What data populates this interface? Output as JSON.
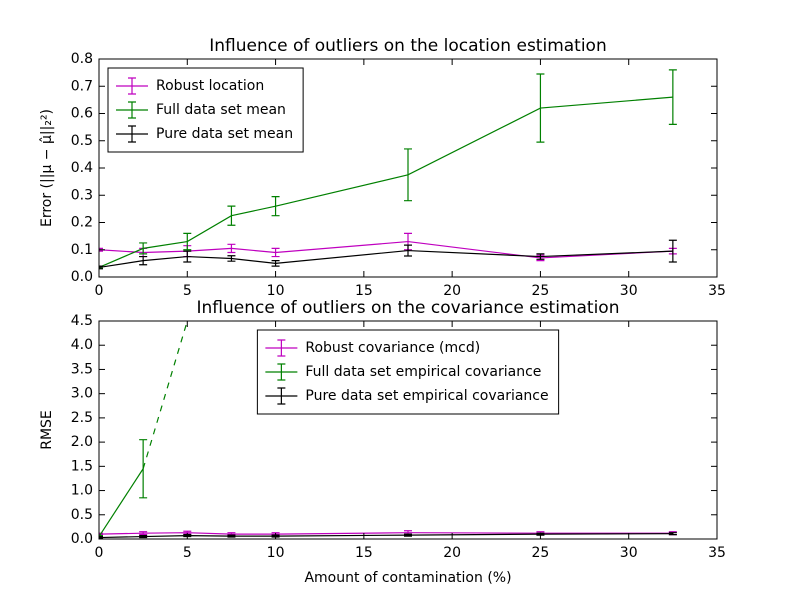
{
  "chart_data": [
    {
      "type": "line",
      "title": "Influence of outliers on the location estimation",
      "ylabel": "Error (||μ − μ̂||₂²)",
      "x": [
        0,
        2.5,
        5,
        7.5,
        10,
        17.5,
        25,
        32.5
      ],
      "xlim": [
        0,
        35
      ],
      "xticks": [
        0,
        5,
        10,
        15,
        20,
        25,
        30,
        35
      ],
      "ylim": [
        0,
        0.8
      ],
      "yticks": [
        {
          "value": 0,
          "label": "0.0"
        },
        0.1,
        0.2,
        0.3,
        0.4,
        0.5,
        0.6,
        0.7,
        0.8
      ],
      "legend": "upper left",
      "series": [
        {
          "name": "Robust location",
          "color": "#bf00bf",
          "values": [
            0.1,
            0.09,
            0.095,
            0.105,
            0.09,
            0.13,
            0.07,
            0.095
          ],
          "errors": [
            0.005,
            0.015,
            0.02,
            0.015,
            0.015,
            0.03,
            0.01,
            0.01
          ]
        },
        {
          "name": "Full data set mean",
          "color": "#008000",
          "values": [
            0.035,
            0.105,
            0.13,
            0.225,
            0.26,
            0.375,
            0.62,
            0.66
          ],
          "errors": [
            0.003,
            0.02,
            0.03,
            0.035,
            0.035,
            0.095,
            0.125,
            0.1
          ]
        },
        {
          "name": "Pure data set mean",
          "color": "#000000",
          "values": [
            0.035,
            0.06,
            0.075,
            0.068,
            0.05,
            0.097,
            0.075,
            0.095
          ],
          "errors": [
            0.005,
            0.015,
            0.02,
            0.01,
            0.01,
            0.02,
            0.01,
            0.04
          ]
        }
      ]
    },
    {
      "type": "line",
      "title": "Influence of outliers on the covariance estimation",
      "xlabel": "Amount of contamination (%)",
      "ylabel": "RMSE",
      "x": [
        0,
        2.5,
        5,
        7.5,
        10,
        17.5,
        25,
        32.5
      ],
      "xlim": [
        0,
        35
      ],
      "xticks": [
        0,
        5,
        10,
        15,
        20,
        25,
        30,
        35
      ],
      "ylim": [
        0,
        4.5
      ],
      "yticks": [
        {
          "value": 0,
          "label": "0.0"
        },
        0.5,
        {
          "value": 1,
          "label": "1.0"
        },
        1.5,
        {
          "value": 2,
          "label": "2.0"
        },
        2.5,
        {
          "value": 3,
          "label": "3.0"
        },
        3.5,
        {
          "value": 4,
          "label": "4.0"
        },
        4.5
      ],
      "legend": "upper center",
      "series": [
        {
          "name": "Robust covariance (mcd)",
          "color": "#bf00bf",
          "values": [
            0.1,
            0.12,
            0.13,
            0.1,
            0.1,
            0.13,
            0.12,
            0.12
          ],
          "errors": [
            0.02,
            0.03,
            0.03,
            0.03,
            0.03,
            0.04,
            0.03,
            0.03
          ]
        },
        {
          "name": "Full data set empirical covariance",
          "color": "#008000",
          "values": [
            0.05,
            1.45,
            4.5,
            null,
            null,
            null,
            null,
            null
          ],
          "errors": [
            0.02,
            0.6,
            null,
            null,
            null,
            null,
            null,
            null
          ],
          "dash_from_x": 2.5
        },
        {
          "name": "Pure data set empirical covariance",
          "color": "#000000",
          "values": [
            0.03,
            0.05,
            0.07,
            0.06,
            0.06,
            0.08,
            0.1,
            0.11
          ],
          "errors": [
            0.02,
            0.02,
            0.02,
            0.02,
            0.02,
            0.02,
            0.02,
            0.02
          ]
        }
      ]
    }
  ]
}
